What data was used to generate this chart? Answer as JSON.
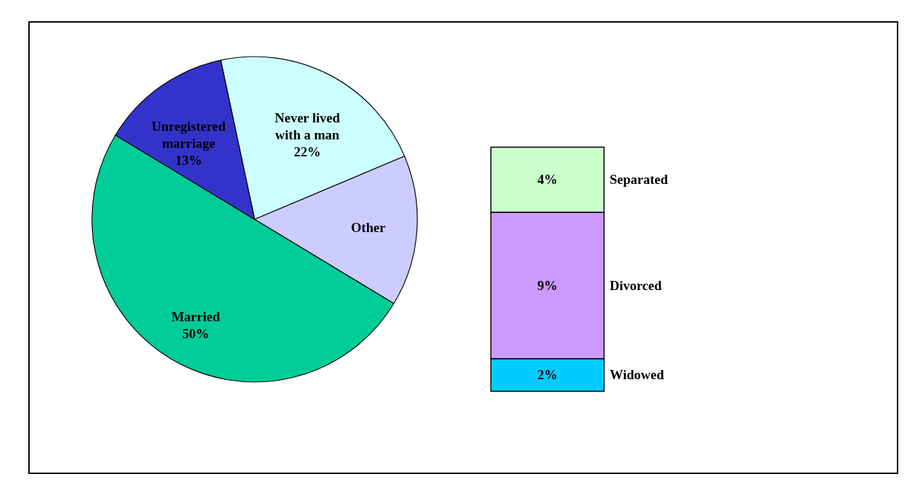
{
  "chart_data": [
    {
      "type": "pie",
      "categories": [
        "Never lived with a man",
        "Other",
        "Married",
        "Unregistered marriage"
      ],
      "values": [
        22,
        15,
        50,
        13
      ],
      "colors": [
        "#ccffff",
        "#ccccff",
        "#00cc99",
        "#3333cc"
      ],
      "value_labels": [
        "22%",
        null,
        "50%",
        "13%"
      ]
    },
    {
      "type": "bar",
      "stacked": true,
      "categories": [
        null
      ],
      "tick_labels": false,
      "series": [
        {
          "name": "Widowed",
          "color": "#00ccff",
          "values": [
            2
          ],
          "value_labels": [
            "2%"
          ]
        },
        {
          "name": "Divorced",
          "color": "#cc99ff",
          "values": [
            9
          ],
          "value_labels": [
            "9%"
          ]
        },
        {
          "name": "Separated",
          "color": "#ccffcc",
          "values": [
            4
          ],
          "value_labels": [
            "4%"
          ]
        }
      ]
    }
  ]
}
